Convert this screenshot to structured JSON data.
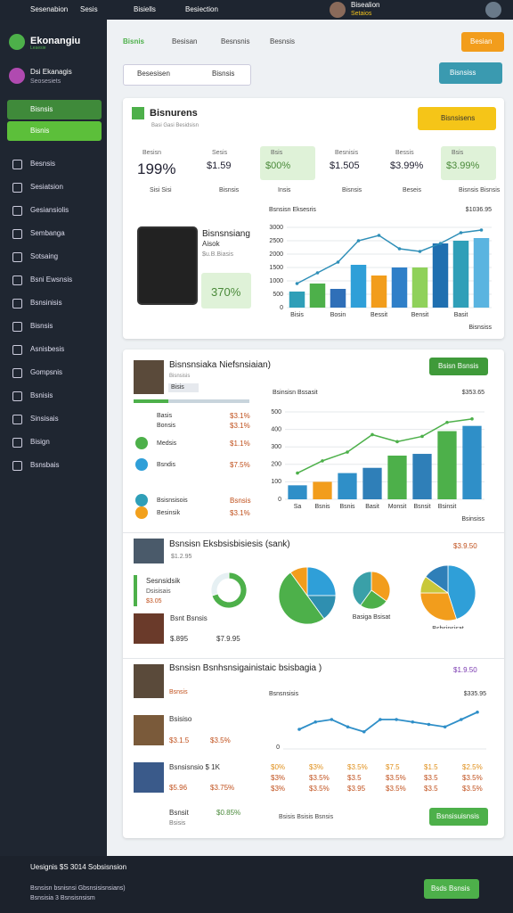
{
  "topbar": {
    "app": "Sesenabion",
    "menu": "Sesis",
    "item1": "Bisiells",
    "item2": "Besiection",
    "user": "Bisealion",
    "user_sub": "Setaios"
  },
  "sidebar": {
    "brand": "Ekonangiu",
    "brand_sub": "Leaesie",
    "profile": "Dsi Ekanagis",
    "profile_sub": "Seosesiets",
    "active": [
      "Bisnsis",
      "Bisnis"
    ],
    "menu": [
      "Besnsis",
      "Sesiatsion",
      "Gesiansiolis",
      "Sembanga",
      "Sotsaing",
      "Bsni Ewsnsis",
      "Bsnsinisis",
      "Bisnsis",
      "Asnisbesis",
      "Gompsnis",
      "Bsnisis",
      "Sinsisais",
      "Bisign",
      "Bsnsbais"
    ]
  },
  "header": {
    "tabs": [
      "Bisnis",
      "Besisan",
      "Besnsnis",
      "Besnsis"
    ],
    "button": "Besian",
    "search": [
      "Besesisen",
      "Bisnsis"
    ],
    "action": "Bisnsiss"
  },
  "card1": {
    "title": "Bisnurens",
    "subtitle": "Basi Gasi Besidsisn",
    "button": "Bisnsisens",
    "kpis": [
      {
        "label": "Besisn",
        "value": "199%",
        "sub": "Sisi Sisi"
      },
      {
        "label": "Sesis",
        "value": "$1.59",
        "sub": "Bisnsis"
      },
      {
        "label": "Bsis",
        "value": "$00%",
        "sub": "Insis"
      },
      {
        "label": "Besnisis",
        "value": "$1.505",
        "sub": "Bisnsis"
      },
      {
        "label": "Bessis",
        "value": "$3.99%",
        "sub": "Beseis"
      },
      {
        "label": "Bsis",
        "value": "$3.99%",
        "sub": "Bisnsis Bisnsis"
      }
    ],
    "promo": {
      "title": "Bisnsnsiang",
      "line1": "Aisok",
      "line2": "$u.B.Biasis",
      "value": "370%"
    },
    "chart": {
      "type": "bar",
      "title": "Bsnsisn Eksesris",
      "total": "$1036.95",
      "legend": "Bisnsiss",
      "categories": [
        "Bisis",
        null,
        "Bosin",
        null,
        "Bessit",
        null,
        "Bensit",
        null,
        "Basit",
        null
      ],
      "values": [
        600,
        900,
        700,
        1600,
        1200,
        1500,
        1500,
        2400,
        2500,
        2600
      ],
      "colors": [
        "#2f9fb8",
        "#4db04a",
        "#2f6fb8",
        "#2f9fd8",
        "#f29d1c",
        "#2f7fc8",
        "#8fd15a",
        "#1f6fb0",
        "#2f9fb8",
        "#5ab4e0"
      ],
      "line": [
        900,
        1300,
        1700,
        2500,
        2700,
        2200,
        2100,
        2400,
        2800,
        2900
      ],
      "line_color": "#2f8fb8",
      "ylim": [
        0,
        3000
      ],
      "yticks": [
        0,
        500,
        1000,
        1500,
        2000,
        2500,
        3000
      ]
    }
  },
  "card2": {
    "title": "Bisnsnsiaka Niefsnsiaian)",
    "sub": "Bisnsisis",
    "badge": "Bisis",
    "button": "Bsisn Bsnsis",
    "items": [
      {
        "label": "Basis",
        "value": "$3.1%"
      },
      {
        "label": "Bonsis",
        "value": "$3.1%"
      },
      {
        "label": "Medsis",
        "value": "$1.1%"
      },
      {
        "label": "Bsndis",
        "value": "$7.5%"
      },
      {
        "label": "Bsisnsisois",
        "value": "Bsnsis"
      },
      {
        "label": "Besinsik",
        "value": "$3.1%"
      }
    ],
    "chart": {
      "type": "bar",
      "title": "Bsinsisn Bssasit",
      "total": "$353.65",
      "legend": "Bsinsiss",
      "categories": [
        "Sa",
        "Bsnis",
        "Bsnis",
        "Basit",
        "Monsit",
        "Bsnsit",
        "Bsinsit",
        null
      ],
      "values": [
        80,
        100,
        150,
        180,
        250,
        260,
        390,
        420
      ],
      "colors": [
        "#2f8fc8",
        "#f29d1c",
        "#2f8fc8",
        "#2f7fb8",
        "#4db04a",
        "#2f7fb8",
        "#4db04a",
        "#2f8fc8"
      ],
      "line": [
        150,
        220,
        270,
        370,
        330,
        360,
        440,
        460
      ],
      "line_color": "#4db04a",
      "ylim": [
        0,
        500
      ],
      "yticks": [
        0,
        100,
        200,
        300,
        400,
        500
      ]
    }
  },
  "section3": {
    "title": "Bsnsisn Eksbsisbisiesis (sank)",
    "value": "$3.9.50",
    "sub": "$1.2.95",
    "item1": "Sesnsidsik",
    "item1_sub": "Dsisisais",
    "item1_value": "$3.05",
    "item2": "Bsnt Bsnsis",
    "item2_a": "$.895",
    "item2_b": "$7.9.95",
    "pies": [
      {
        "type": "pie",
        "values": [
          70,
          30
        ],
        "colors": [
          "#4db04a",
          "#e6f0f3"
        ]
      },
      {
        "type": "pie",
        "values": [
          25,
          15,
          50,
          10
        ],
        "colors": [
          "#2f9fd8",
          "#2f8fb0",
          "#4db04a",
          "#f29d1c"
        ],
        "label": "Dsrsisn Sinsis"
      },
      {
        "type": "pie",
        "values": [
          35,
          25,
          40
        ],
        "colors": [
          "#f29d1c",
          "#4db04a",
          "#3aa0a8"
        ],
        "label": "Basiga Bsisat"
      },
      {
        "type": "pie",
        "values": [
          45,
          30,
          10,
          15
        ],
        "colors": [
          "#2f9fd8",
          "#f29d1c",
          "#c8c83a",
          "#2f7fb8"
        ],
        "label": "Bsbsinsisat"
      }
    ]
  },
  "section4": {
    "title": "Bsnsisn Bsnhsnsigainistaic bsisbagia )",
    "value": "$1.9.50",
    "sub": "Bsnsis",
    "item1": "Bsisiso",
    "item1_a": "$3.1.5",
    "item1_b": "$3.5%",
    "item2": "Bsnsisnsio $ 1K",
    "item2_a": "$5.96",
    "item2_b": "$3.75%",
    "item3": "Bsnsit",
    "item3_value": "$0.85%",
    "item3_sub": "Bsisis",
    "chart": {
      "type": "line",
      "title": "Bsnsnsisis",
      "total": "$335.95",
      "values": [
        40,
        55,
        60,
        45,
        35,
        60,
        60,
        55,
        50,
        45,
        60,
        75
      ],
      "color": "#2f8fc8",
      "ylim": [
        0,
        100
      ],
      "yticks": [
        0
      ]
    },
    "grid": [
      [
        "$0%",
        "$3%",
        "$3.5%",
        "$7.5",
        "$1.5",
        "$2.5%"
      ],
      [
        "$3%",
        "$3.5%",
        "$3.5",
        "$3.5%",
        "$3.5",
        "$3.5%"
      ],
      [
        "$3%",
        "$3.5%",
        "$3.95",
        "$3.5%",
        "$3.5",
        "$3.5%"
      ]
    ],
    "footer": "Bsisis Bsisis Bsnsis",
    "button": "Bsnsisuisnsis"
  },
  "bottombar": {
    "title": "Uesignis $S 3014 Sobsisnsion",
    "line1": "Bsnsisn bsnisnsi Gbsnsisisnsians)",
    "line2": "Bsnsisia 3 Bsnsisnsism",
    "button": "Bsds Bsnsis"
  }
}
